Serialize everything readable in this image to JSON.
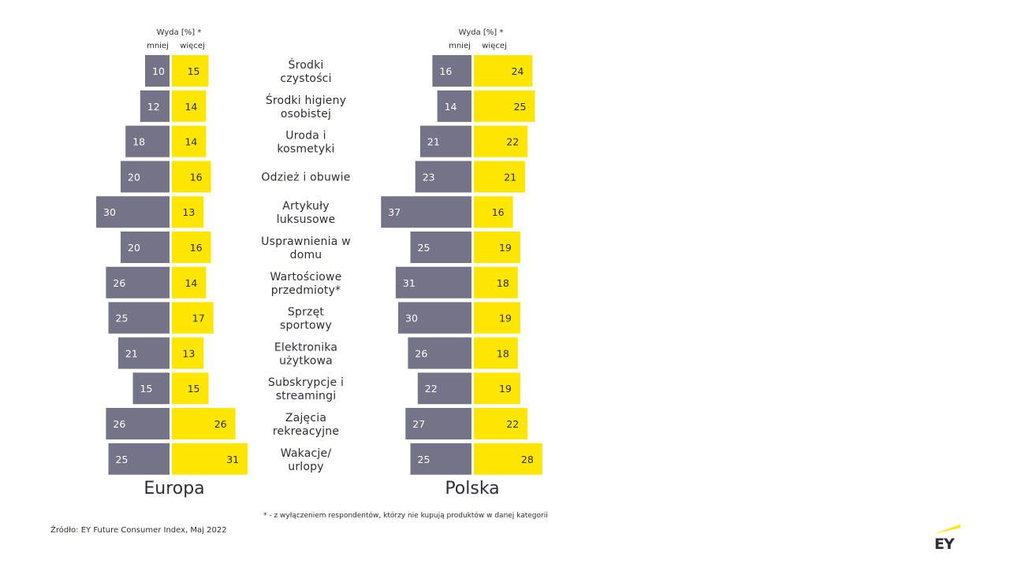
{
  "chart_data": [
    {
      "type": "bar",
      "orientation": "horizontal-diverging",
      "title": "Europa",
      "header": "Wyda [%] *",
      "series": [
        {
          "name": "mniej",
          "color": "#747489",
          "values": [
            10,
            12,
            18,
            20,
            30,
            20,
            26,
            25,
            21,
            15,
            26,
            25
          ]
        },
        {
          "name": "więcej",
          "color": "#FFE600",
          "values": [
            15,
            14,
            14,
            16,
            13,
            16,
            14,
            17,
            13,
            15,
            26,
            31
          ]
        }
      ]
    },
    {
      "type": "bar",
      "orientation": "horizontal-diverging",
      "title": "Polska",
      "header": "Wyda [%] *",
      "series": [
        {
          "name": "mniej",
          "color": "#747489",
          "values": [
            16,
            14,
            21,
            23,
            37,
            25,
            31,
            30,
            26,
            22,
            27,
            25
          ]
        },
        {
          "name": "więcej",
          "color": "#FFE600",
          "values": [
            24,
            25,
            22,
            21,
            16,
            19,
            18,
            19,
            18,
            19,
            22,
            28
          ]
        }
      ]
    }
  ],
  "categories": [
    [
      "Środki",
      "czystości"
    ],
    [
      "Środki higieny",
      "osobistej"
    ],
    [
      "Uroda i",
      "kosmetyki"
    ],
    [
      "Odzież i obuwie"
    ],
    [
      "Artykuły",
      "luksusowe"
    ],
    [
      "Usprawnienia w",
      "domu"
    ],
    [
      "Wartościowe",
      "przedmioty*"
    ],
    [
      "Sprzęt",
      "sportowy"
    ],
    [
      "Elektronika",
      "użytkowa"
    ],
    [
      "Subskrypcje i",
      "streamingi"
    ],
    [
      "Zajęcia",
      "rekreacyjne"
    ],
    [
      "Wakacje/",
      "urlopy"
    ]
  ],
  "footnote": "* - z  wyłączeniem respondentów,  którzy nie kupują produktów w danej kategorii",
  "source": "Źródło: EY Future Consumer Index, Maj 2022",
  "logo": {
    "text": "EY",
    "accent": "#FFE600"
  }
}
